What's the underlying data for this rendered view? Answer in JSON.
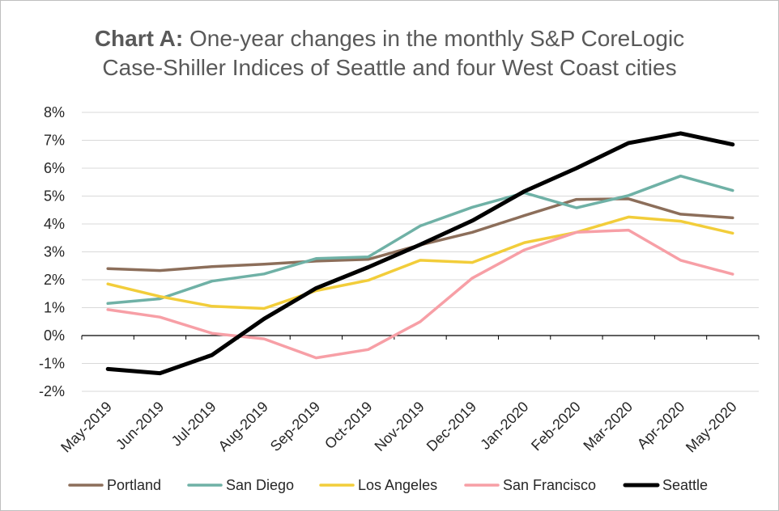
{
  "title": {
    "bold": "Chart A:",
    "line1": "One-year changes in the monthly S&P CoreLogic",
    "line2": "Case-Shiller Indices of Seattle and four West Coast cities"
  },
  "chart_data": {
    "type": "line",
    "title": "Chart A: One-year changes in the monthly S&P CoreLogic Case-Shiller Indices of Seattle and four West Coast cities",
    "xlabel": "",
    "ylabel": "",
    "categories": [
      "May-2019",
      "Jun-2019",
      "Jul-2019",
      "Aug-2019",
      "Sep-2019",
      "Oct-2019",
      "Nov-2019",
      "Dec-2019",
      "Jan-2020",
      "Feb-2020",
      "Mar-2020",
      "Apr-2020",
      "May-2020"
    ],
    "ylim": [
      -2,
      8
    ],
    "yticks": [
      "8%",
      "7%",
      "6%",
      "5%",
      "4%",
      "3%",
      "2%",
      "1%",
      "0%",
      "-1%",
      "-2%"
    ],
    "ytick_values": [
      8,
      7,
      6,
      5,
      4,
      3,
      2,
      1,
      0,
      -1,
      -2
    ],
    "grid": true,
    "legend_position": "bottom",
    "series": [
      {
        "name": "Portland",
        "color": "#8c6e5a",
        "values": [
          2.4,
          2.33,
          2.47,
          2.56,
          2.67,
          2.73,
          3.25,
          3.7,
          4.3,
          4.88,
          4.9,
          4.35,
          4.22
        ]
      },
      {
        "name": "San Diego",
        "color": "#6fb1a6",
        "values": [
          1.15,
          1.32,
          1.95,
          2.21,
          2.76,
          2.82,
          3.93,
          4.6,
          5.12,
          4.58,
          5.02,
          5.72,
          5.2
        ]
      },
      {
        "name": "Los Angeles",
        "color": "#f2cd3a",
        "values": [
          1.85,
          1.4,
          1.05,
          0.97,
          1.61,
          1.98,
          2.7,
          2.62,
          3.33,
          3.7,
          4.25,
          4.1,
          3.67
        ]
      },
      {
        "name": "San Francisco",
        "color": "#f79fa6",
        "values": [
          0.93,
          0.66,
          0.08,
          -0.12,
          -0.8,
          -0.5,
          0.5,
          2.06,
          3.07,
          3.7,
          3.78,
          2.7,
          2.2
        ]
      },
      {
        "name": "Seattle",
        "color": "#000000",
        "values": [
          -1.2,
          -1.35,
          -0.7,
          0.6,
          1.7,
          2.45,
          3.26,
          4.12,
          5.17,
          6.0,
          6.9,
          7.25,
          6.85
        ]
      }
    ]
  }
}
